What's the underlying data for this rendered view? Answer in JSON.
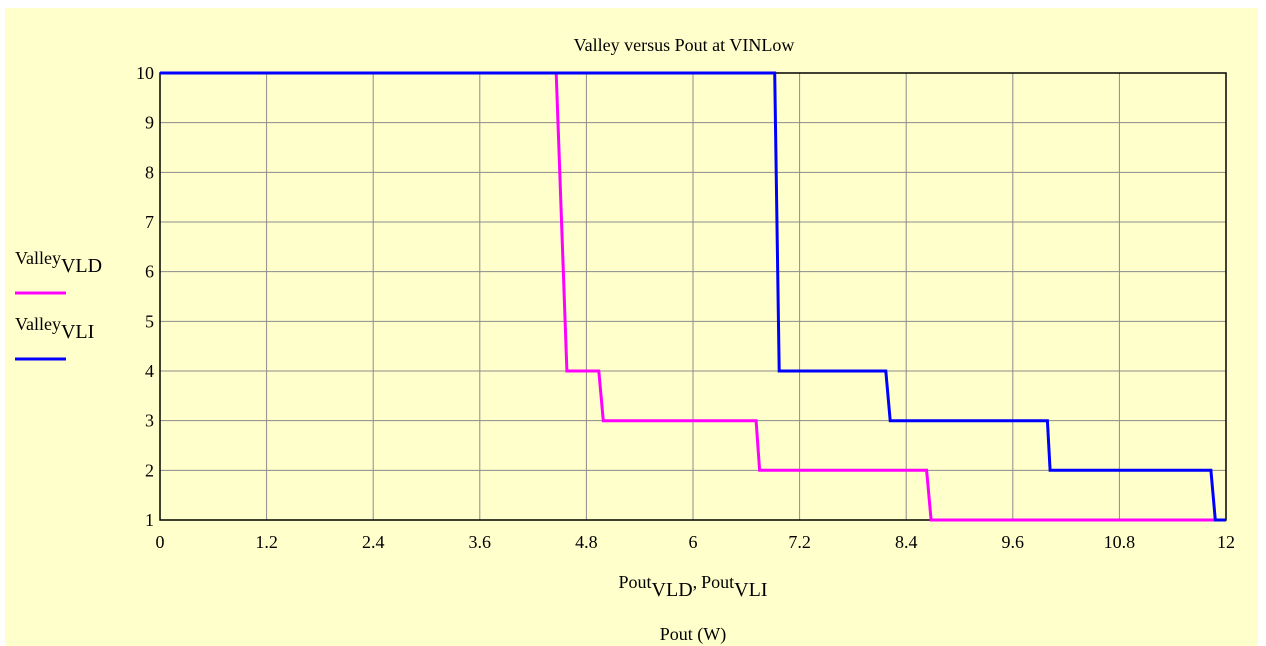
{
  "chart_data": {
    "type": "line",
    "title": "Valley versus Pout at VINLow",
    "xlabel": "Pout (W)",
    "xvars": [
      {
        "name": "Pout",
        "sub": "VLD"
      },
      {
        "name": "Pout",
        "sub": "VLI"
      }
    ],
    "xvars_separator": ",",
    "xlim": [
      0,
      12
    ],
    "xticks": [
      0,
      1.2,
      2.4,
      3.6,
      4.8,
      6,
      7.2,
      8.4,
      9.6,
      10.8,
      12
    ],
    "ylim": [
      1,
      10
    ],
    "yticks": [
      1,
      2,
      3,
      4,
      5,
      6,
      7,
      8,
      9,
      10
    ],
    "grid": true,
    "series": [
      {
        "name": "Valley",
        "sub": "VLD",
        "color": "#ff00ff",
        "x": [
          0,
          4.46,
          4.58,
          4.94,
          4.99,
          6.71,
          6.75,
          8.63,
          8.68,
          12
        ],
        "values": [
          10,
          10,
          4,
          4,
          3,
          3,
          2,
          2,
          1,
          1
        ]
      },
      {
        "name": "Valley",
        "sub": "VLI",
        "color": "#0000ff",
        "x": [
          0,
          6.92,
          6.97,
          8.17,
          8.22,
          9.99,
          10.02,
          11.83,
          11.88,
          12
        ],
        "values": [
          10,
          10,
          4,
          4,
          3,
          3,
          2,
          2,
          1,
          1
        ]
      }
    ]
  }
}
